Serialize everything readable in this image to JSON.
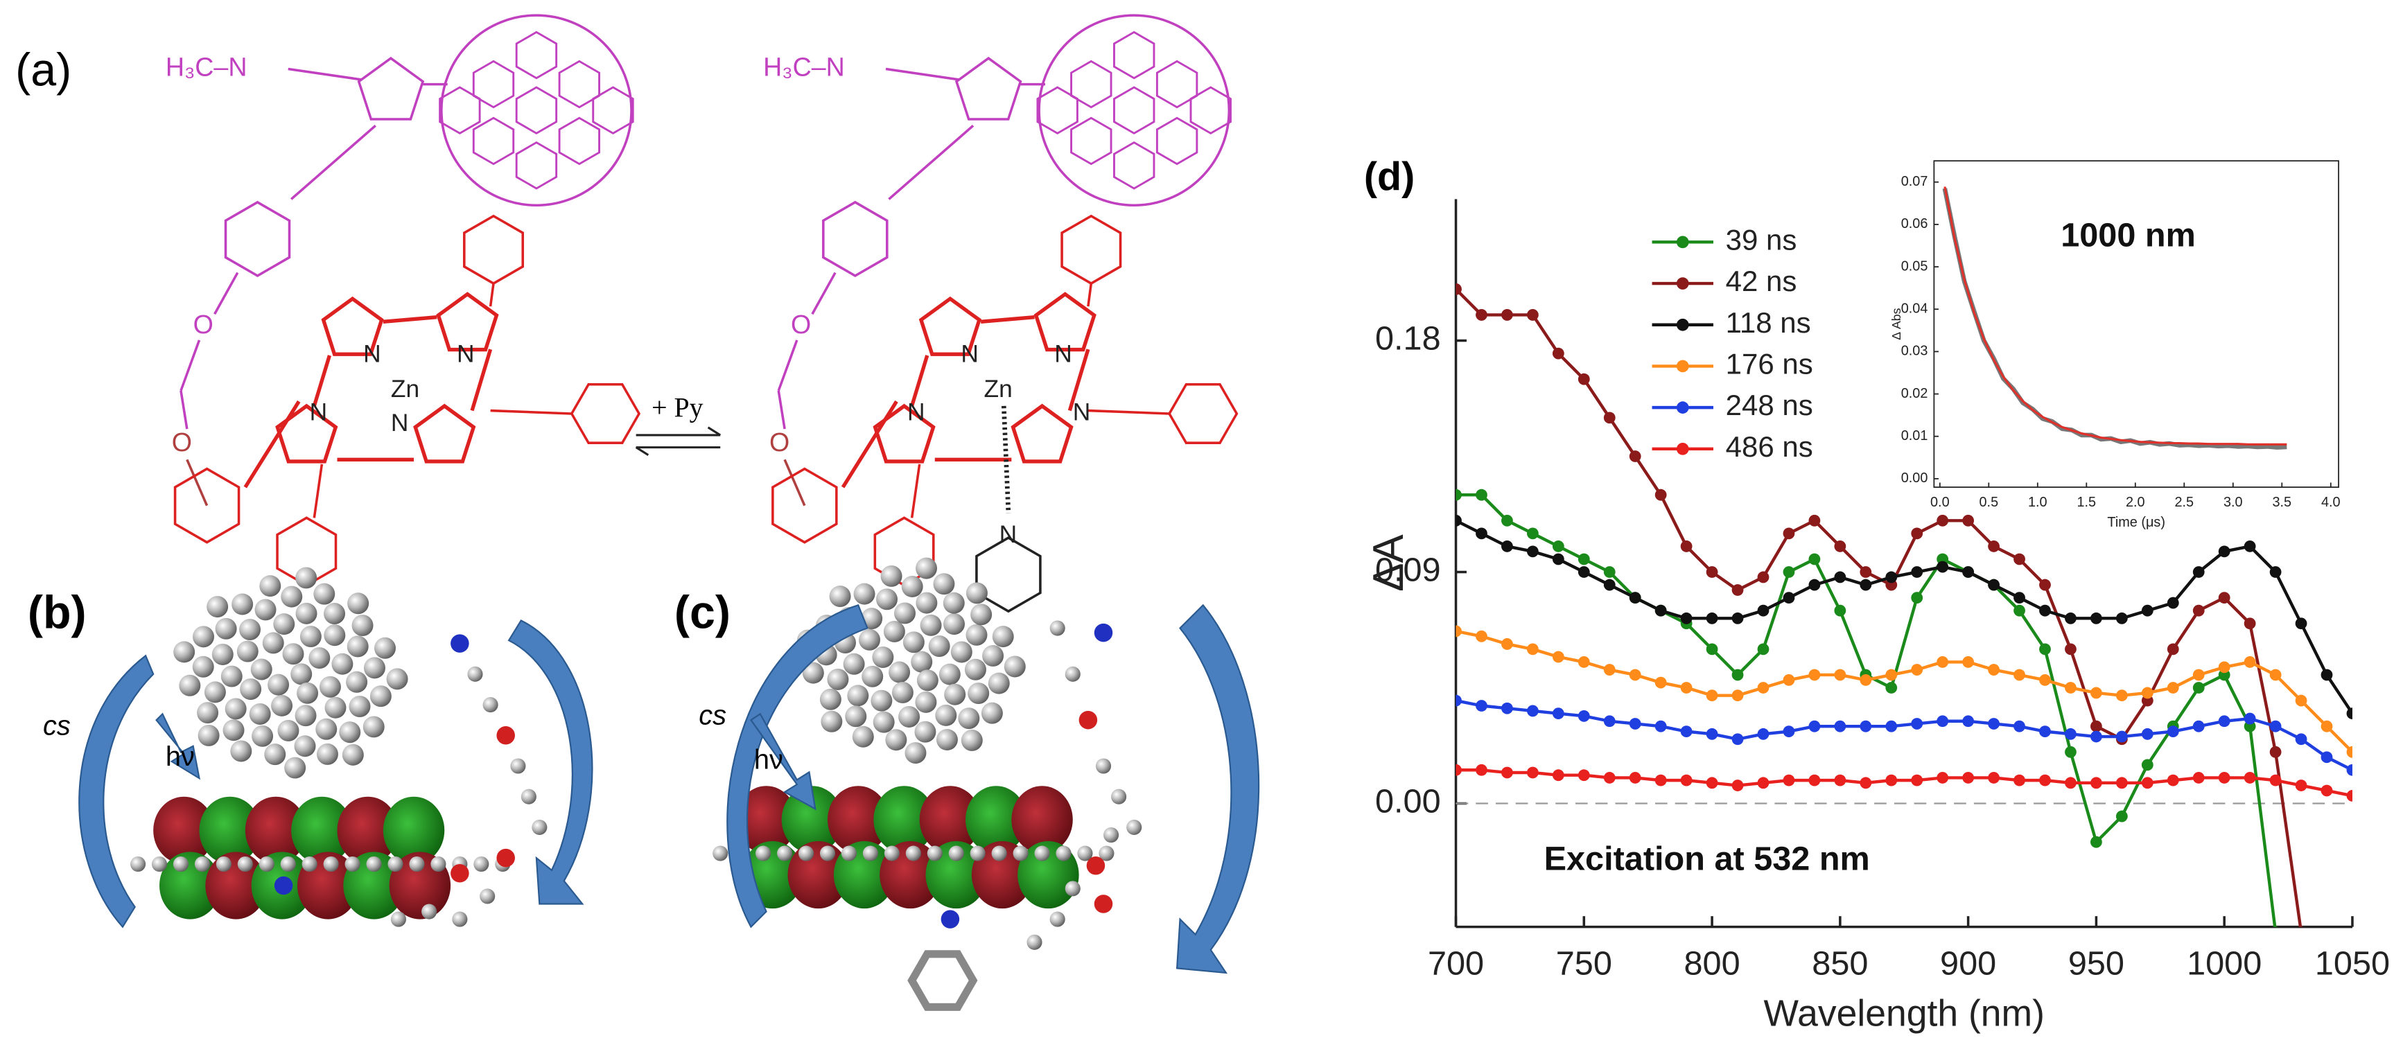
{
  "panels": {
    "a": "(a)",
    "b": "(b)",
    "c": "(c)",
    "d": "(d)"
  },
  "scheme": {
    "molecule_1": {
      "methyl": "H₃C–N",
      "oxygens": [
        "O",
        "O"
      ],
      "nitrogens": [
        "N",
        "N",
        "N",
        "N"
      ],
      "metal": "Zn"
    },
    "molecule_2": {
      "methyl": "H₃C–N",
      "oxygens": [
        "O",
        "O"
      ],
      "nitrogens": [
        "N",
        "N",
        "N",
        "N"
      ],
      "metal": "Zn",
      "pyridine_n": "N"
    },
    "arrow_label": "+ Py"
  },
  "orbitals": {
    "b": {
      "arrow_label": "hν",
      "cropped_label": "cs"
    },
    "c": {
      "arrow_label": "hν",
      "cropped_label": "cs"
    }
  },
  "chart_data": [
    {
      "type": "line",
      "xlabel": "Wavelength (nm)",
      "ylabel": "ΔA",
      "annotation": "Excitation at 532 nm",
      "xlim": [
        700,
        1050
      ],
      "ylim": [
        -0.048,
        0.235
      ],
      "xticks": [
        700,
        750,
        800,
        850,
        900,
        950,
        1000,
        1050
      ],
      "yticks": [
        {
          "value": 0,
          "label": "0.00"
        },
        0.09,
        0.18
      ],
      "hlines": [
        0
      ],
      "markers": true,
      "legend": "upper center",
      "x": [
        700,
        710,
        720,
        730,
        740,
        750,
        760,
        770,
        780,
        790,
        800,
        810,
        820,
        830,
        840,
        850,
        860,
        870,
        880,
        890,
        900,
        910,
        920,
        930,
        940,
        950,
        960,
        970,
        980,
        990,
        1000,
        1010,
        1020,
        1030,
        1040,
        1050
      ],
      "series": [
        {
          "name": "39 ns",
          "color": "#1a8a1a",
          "values": [
            0.12,
            0.12,
            0.11,
            0.105,
            0.1,
            0.095,
            0.09,
            0.08,
            0.075,
            0.07,
            0.06,
            0.05,
            0.06,
            0.09,
            0.095,
            0.075,
            0.05,
            0.045,
            0.08,
            0.095,
            0.09,
            0.085,
            0.075,
            0.06,
            0.02,
            -0.015,
            -0.005,
            0.015,
            0.03,
            0.045,
            0.05,
            0.03,
            -0.05,
            null,
            null,
            null
          ]
        },
        {
          "name": "42 ns",
          "color": "#8b1a1a",
          "values": [
            0.2,
            0.19,
            0.19,
            0.19,
            0.175,
            0.165,
            0.15,
            0.135,
            0.12,
            0.1,
            0.09,
            0.083,
            0.088,
            0.105,
            0.11,
            0.1,
            0.09,
            0.085,
            0.105,
            0.11,
            0.11,
            0.1,
            0.095,
            0.085,
            0.06,
            0.03,
            0.025,
            0.04,
            0.06,
            0.075,
            0.08,
            0.07,
            0.02,
            -0.05,
            null,
            null
          ]
        },
        {
          "name": "118 ns",
          "color": "#111111",
          "values": [
            0.11,
            0.105,
            0.1,
            0.098,
            0.095,
            0.09,
            0.085,
            0.08,
            0.075,
            0.072,
            0.072,
            0.072,
            0.075,
            0.08,
            0.085,
            0.088,
            0.085,
            0.088,
            0.09,
            0.092,
            0.09,
            0.085,
            0.08,
            0.075,
            0.072,
            0.072,
            0.072,
            0.075,
            0.078,
            0.09,
            0.098,
            0.1,
            0.09,
            0.07,
            0.05,
            0.035
          ]
        },
        {
          "name": "176 ns",
          "color": "#ff8c1a",
          "values": [
            0.067,
            0.065,
            0.062,
            0.06,
            0.057,
            0.055,
            0.052,
            0.05,
            0.047,
            0.045,
            0.042,
            0.042,
            0.045,
            0.048,
            0.05,
            0.05,
            0.048,
            0.05,
            0.052,
            0.055,
            0.055,
            0.052,
            0.05,
            0.048,
            0.045,
            0.043,
            0.042,
            0.043,
            0.045,
            0.05,
            0.053,
            0.055,
            0.05,
            0.04,
            0.03,
            0.02
          ]
        },
        {
          "name": "248 ns",
          "color": "#1f3fe0",
          "values": [
            0.04,
            0.038,
            0.037,
            0.036,
            0.035,
            0.034,
            0.032,
            0.031,
            0.03,
            0.028,
            0.027,
            0.025,
            0.027,
            0.028,
            0.03,
            0.03,
            0.03,
            0.03,
            0.031,
            0.032,
            0.032,
            0.031,
            0.03,
            0.028,
            0.027,
            0.026,
            0.026,
            0.027,
            0.028,
            0.03,
            0.032,
            0.033,
            0.03,
            0.025,
            0.018,
            0.013
          ]
        },
        {
          "name": "486 ns",
          "color": "#e8201e",
          "values": [
            0.013,
            0.013,
            0.012,
            0.012,
            0.011,
            0.011,
            0.01,
            0.01,
            0.009,
            0.009,
            0.008,
            0.007,
            0.008,
            0.009,
            0.009,
            0.009,
            0.008,
            0.009,
            0.009,
            0.01,
            0.01,
            0.01,
            0.009,
            0.009,
            0.008,
            0.008,
            0.008,
            0.008,
            0.009,
            0.01,
            0.01,
            0.01,
            0.009,
            0.007,
            0.005,
            0.003
          ]
        }
      ]
    },
    {
      "type": "line",
      "title": "1000 nm",
      "xlabel": "Time (μs)",
      "ylabel": "Δ Abs",
      "xlim": [
        -0.06,
        4.08
      ],
      "ylim": [
        -0.002,
        0.075
      ],
      "xticks": [
        {
          "value": 0,
          "label": "0.0"
        },
        0.5,
        {
          "value": 1,
          "label": "1.0"
        },
        1.5,
        {
          "value": 2,
          "label": "2.0"
        },
        2.5,
        {
          "value": 3,
          "label": "3.0"
        },
        3.5,
        {
          "value": 4,
          "label": "4.0"
        }
      ],
      "yticks": [
        {
          "value": 0,
          "label": "0.00"
        },
        0.01,
        0.02,
        0.03,
        0.04,
        0.05,
        0.06,
        0.07
      ],
      "markers": false,
      "x": [
        0.05,
        0.15,
        0.25,
        0.35,
        0.45,
        0.55,
        0.65,
        0.75,
        0.85,
        0.95,
        1.05,
        1.15,
        1.25,
        1.35,
        1.45,
        1.55,
        1.65,
        1.75,
        1.85,
        1.95,
        2.05,
        2.15,
        2.25,
        2.35,
        2.45,
        2.55,
        2.65,
        2.75,
        2.85,
        2.95,
        3.05,
        3.15,
        3.25,
        3.35,
        3.45,
        3.55
      ],
      "series": [
        {
          "color": "#777777",
          "values": [
            0.0685,
            0.0572,
            0.0466,
            0.0395,
            0.0326,
            0.0284,
            0.0236,
            0.0212,
            0.0179,
            0.0164,
            0.0142,
            0.0135,
            0.0118,
            0.0115,
            0.0103,
            0.0103,
            0.0093,
            0.0095,
            0.0087,
            0.009,
            0.0083,
            0.0086,
            0.0081,
            0.0083,
            0.0079,
            0.008,
            0.0078,
            0.0079,
            0.0077,
            0.0078,
            0.0076,
            0.0077,
            0.0075,
            0.0076,
            0.0074,
            0.0075
          ]
        },
        {
          "color": "#e0302a",
          "values": [
            0.0689,
            0.0568,
            0.047,
            0.0392,
            0.033,
            0.0281,
            0.024,
            0.0209,
            0.0183,
            0.0162,
            0.0146,
            0.0133,
            0.0122,
            0.0114,
            0.0107,
            0.0102,
            0.0097,
            0.0094,
            0.0091,
            0.0089,
            0.0087,
            0.0086,
            0.0085,
            0.0084,
            0.0084,
            0.0083,
            0.0083,
            0.0082,
            0.0082,
            0.0082,
            0.0082,
            0.0081,
            0.0081,
            0.0081,
            0.0081,
            0.0081
          ]
        }
      ]
    }
  ]
}
